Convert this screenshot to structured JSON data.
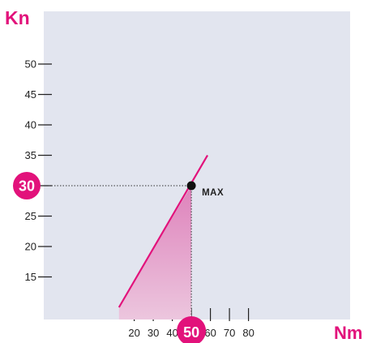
{
  "chart_data": {
    "type": "line",
    "xlabel": "Nm",
    "ylabel": "Kn",
    "xlim": [
      12,
      96
    ],
    "ylim": [
      10,
      55
    ],
    "x_ticks": [
      20,
      30,
      40,
      50,
      60,
      70,
      80
    ],
    "y_ticks": [
      15,
      20,
      25,
      30,
      35,
      40,
      45,
      50
    ],
    "series": [
      {
        "points": [
          [
            12,
            10
          ],
          [
            58.5,
            35
          ]
        ]
      }
    ],
    "max_point": {
      "x": 50,
      "y": 30,
      "label": "MAX"
    },
    "x_badge": "50",
    "y_badge": "30",
    "colors": {
      "plot_background": "#e2e5ef",
      "accent": "#e2127b",
      "fill_top": "#de82bb",
      "fill_bottom": "#ecc6de",
      "text": "#222222"
    }
  }
}
